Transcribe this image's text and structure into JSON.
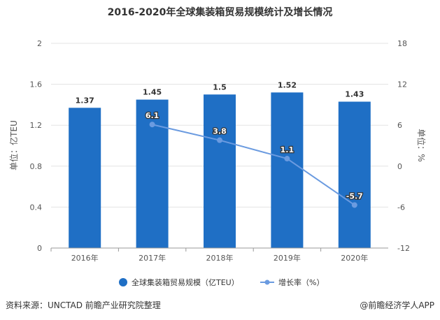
{
  "chart_data": {
    "type": "bar+line",
    "title": "2016-2020年全球集装箱贸易规模统计及增长情况",
    "categories": [
      "2016年",
      "2017年",
      "2018年",
      "2019年",
      "2020年"
    ],
    "series": [
      {
        "name": "全球集装箱贸易规模（亿TEU）",
        "type": "bar",
        "axis": "left",
        "values": [
          1.37,
          1.45,
          1.5,
          1.52,
          1.43
        ],
        "labels": [
          "1.37",
          "1.45",
          "1.5",
          "1.52",
          "1.43"
        ],
        "color": "#1f6fc5"
      },
      {
        "name": "增长率（%）",
        "type": "line",
        "axis": "right",
        "values": [
          null,
          6.1,
          3.8,
          1.1,
          -5.7
        ],
        "labels": [
          "",
          "6.1",
          "3.8",
          "1.1",
          "-5.7"
        ],
        "color": "#6b9be0"
      }
    ],
    "ylabel": "单位：亿TEU",
    "ylim": [
      0,
      2
    ],
    "yticks": [
      "0",
      "0.4",
      "0.8",
      "1.2",
      "1.6",
      "2"
    ],
    "y2label": "单位：%",
    "y2lim": [
      -12,
      18
    ],
    "y2ticks": [
      "-12",
      "-6",
      "0",
      "6",
      "12",
      "18"
    ],
    "grid": true,
    "legend": "bottom"
  },
  "footer": {
    "source": "资料来源：UNCTAD 前瞻产业研究院整理",
    "credit": "@前瞻经济学人APP"
  }
}
